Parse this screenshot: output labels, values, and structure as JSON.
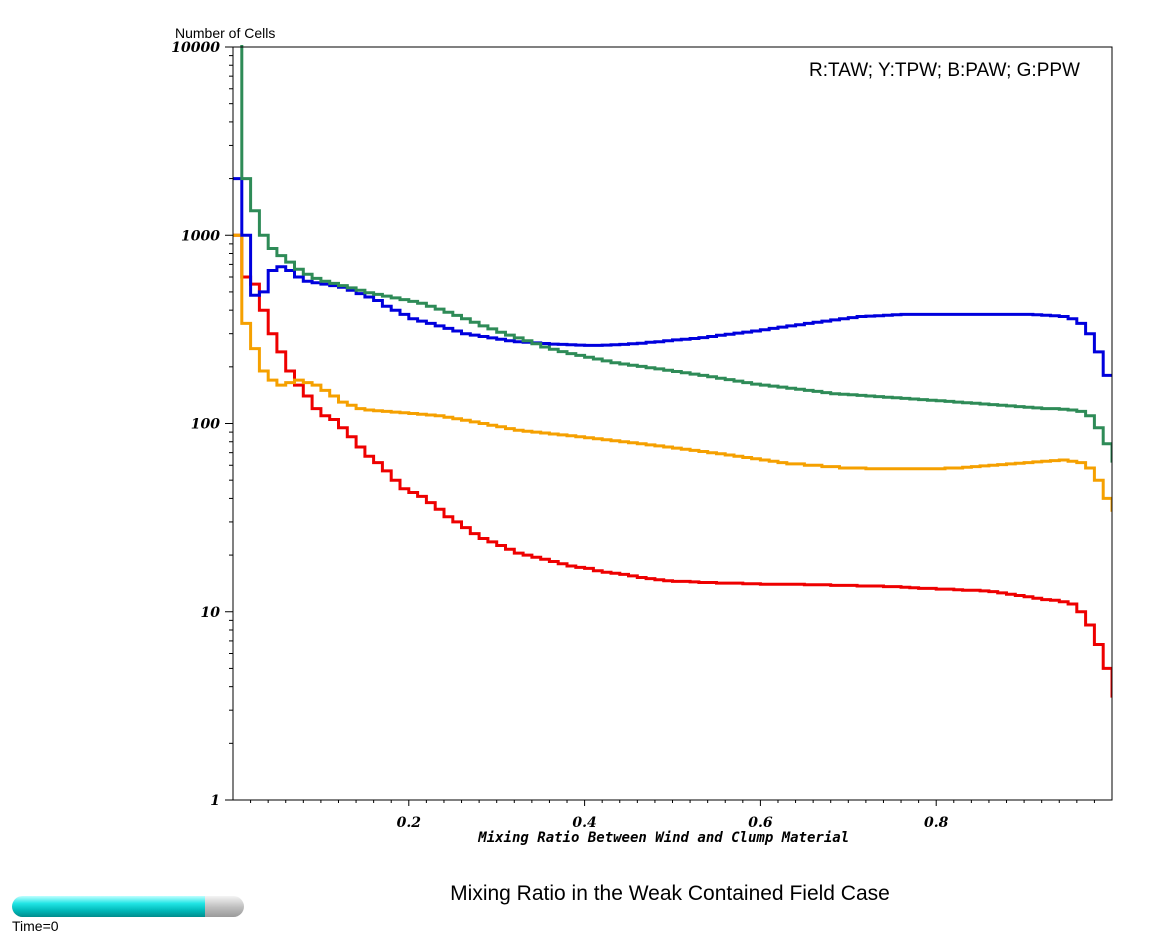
{
  "chart_data": {
    "type": "line",
    "title": "Mixing Ratio in the Weak Contained Field Case",
    "xlabel": "Mixing Ratio Between Wind and Clump Material",
    "ylabel": "Number of Cells",
    "legend_text": "R:TAW; Y:TPW; B:PAW; G:PPW",
    "legend_placement": "top-right",
    "xlim": [
      0,
      1
    ],
    "ylim": [
      1,
      10000
    ],
    "yscale": "log",
    "grid": false,
    "x_ticks": [
      {
        "value": 0.2,
        "label": "0.2"
      },
      {
        "value": 0.4,
        "label": "0.4"
      },
      {
        "value": 0.6,
        "label": "0.6"
      },
      {
        "value": 0.8,
        "label": "0.8"
      }
    ],
    "y_ticks": [
      {
        "value": 1,
        "label": "1"
      },
      {
        "value": 10,
        "label": "10"
      },
      {
        "value": 100,
        "label": "100"
      },
      {
        "value": 1000,
        "label": "1000"
      },
      {
        "value": 10000,
        "label": "10000"
      }
    ],
    "bin_width": 0.01,
    "series": [
      {
        "id": "TAW",
        "color": "#ee0000",
        "values": [
          1000,
          600,
          550,
          400,
          300,
          240,
          190,
          160,
          140,
          120,
          110,
          105,
          95,
          85,
          75,
          67,
          62,
          56,
          50,
          45,
          43,
          41,
          38,
          35,
          32,
          30,
          28,
          26,
          24.5,
          23.5,
          22.5,
          21.5,
          20.5,
          20,
          19.5,
          19,
          18.5,
          18,
          17.5,
          17.2,
          17,
          16.5,
          16.2,
          16,
          15.8,
          15.5,
          15.2,
          15,
          14.8,
          14.6,
          14.5,
          14.5,
          14.4,
          14.3,
          14.3,
          14.2,
          14.2,
          14.2,
          14.1,
          14.1,
          14,
          14,
          14,
          14,
          14,
          13.9,
          13.9,
          13.9,
          13.8,
          13.8,
          13.8,
          13.7,
          13.7,
          13.7,
          13.6,
          13.6,
          13.5,
          13.4,
          13.3,
          13.3,
          13.2,
          13.2,
          13.1,
          13,
          13,
          12.9,
          12.8,
          12.6,
          12.4,
          12.2,
          12,
          11.8,
          11.6,
          11.5,
          11.3,
          11,
          10,
          8.5,
          6.7,
          5,
          3.5
        ]
      },
      {
        "id": "TPW",
        "color": "#f5a000",
        "values": [
          1000,
          340,
          250,
          190,
          170,
          160,
          165,
          170,
          165,
          160,
          150,
          140,
          130,
          125,
          120,
          118,
          117,
          116,
          115,
          114,
          113,
          112,
          111,
          110,
          108,
          106,
          104,
          102,
          100,
          98,
          96,
          94,
          92,
          91,
          90,
          89,
          88,
          87,
          86,
          85,
          84,
          83,
          82,
          81,
          80,
          79,
          78,
          77,
          76,
          75,
          74,
          73,
          72,
          71,
          70,
          69,
          68,
          67,
          66,
          65,
          64,
          63,
          62,
          61,
          61,
          60,
          60,
          59,
          59,
          58,
          58,
          58,
          57.5,
          57.5,
          57.5,
          57.5,
          57.5,
          57.5,
          57.5,
          57.5,
          57.5,
          58,
          58,
          58.5,
          59,
          59.5,
          60,
          60.5,
          61,
          61.5,
          62,
          62.5,
          63,
          63.5,
          64,
          63,
          62,
          58,
          50,
          40,
          34
        ]
      },
      {
        "id": "PAW",
        "color": "#0000dd",
        "values": [
          2000,
          1000,
          480,
          500,
          650,
          680,
          650,
          600,
          570,
          560,
          550,
          540,
          530,
          510,
          490,
          470,
          450,
          420,
          400,
          380,
          360,
          350,
          340,
          330,
          320,
          310,
          300,
          295,
          290,
          285,
          280,
          275,
          272,
          270,
          268,
          266,
          264,
          263,
          262,
          261,
          260,
          260,
          261,
          262,
          263,
          265,
          267,
          270,
          272,
          275,
          278,
          280,
          283,
          286,
          290,
          294,
          298,
          302,
          306,
          310,
          315,
          320,
          325,
          330,
          335,
          340,
          345,
          350,
          355,
          360,
          365,
          370,
          372,
          374,
          376,
          378,
          380,
          380,
          380,
          380,
          380,
          380,
          380,
          380,
          380,
          380,
          380,
          380,
          380,
          380,
          380,
          378,
          376,
          374,
          370,
          360,
          340,
          300,
          240,
          180
        ]
      },
      {
        "id": "PPW",
        "color": "#2e8b57",
        "values": [
          11000,
          2000,
          1350,
          1000,
          850,
          780,
          720,
          660,
          620,
          590,
          570,
          555,
          540,
          525,
          510,
          495,
          485,
          475,
          465,
          455,
          445,
          435,
          420,
          405,
          390,
          375,
          360,
          345,
          330,
          318,
          305,
          295,
          285,
          275,
          265,
          255,
          248,
          241,
          235,
          230,
          225,
          220,
          215,
          210,
          207,
          204,
          201,
          198,
          195,
          192,
          189,
          186,
          183,
          180,
          177,
          174,
          171,
          168,
          165,
          162,
          160,
          158,
          156,
          154,
          152,
          150,
          148,
          146,
          144,
          143,
          142,
          141,
          140,
          139,
          138,
          137,
          136,
          135,
          134,
          133,
          132,
          131,
          130,
          129,
          128,
          127,
          126,
          125,
          124,
          123,
          122,
          121,
          120,
          120,
          119,
          118,
          116,
          110,
          95,
          78,
          62
        ]
      }
    ]
  },
  "time_slider": {
    "label": "Time=0",
    "progress": 0.83
  }
}
